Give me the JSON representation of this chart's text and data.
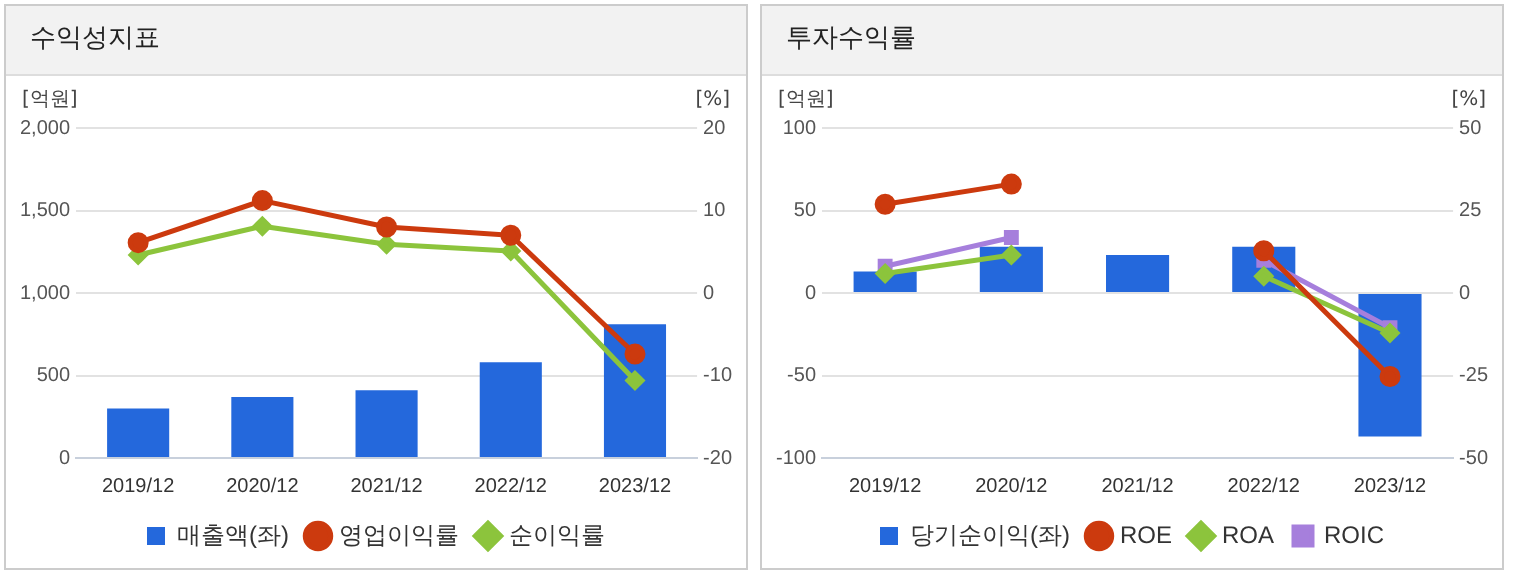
{
  "chart_data": [
    {
      "type": "bar",
      "title": "수익성지표",
      "ylabel": "[억원]",
      "y2label": "[%]",
      "categories": [
        "2019/12",
        "2020/12",
        "2021/12",
        "2022/12",
        "2023/12"
      ],
      "series": [
        {
          "name": "매출액(좌)",
          "color": "#2468dc",
          "values": [
            300,
            370,
            410,
            580,
            810
          ]
        },
        {
          "name": "영업이익률",
          "type": "line",
          "axis": "y2",
          "marker": "circle",
          "color": "#cc3a0e",
          "values": [
            6.1,
            11.2,
            8.0,
            7.0,
            -7.4
          ]
        },
        {
          "name": "순이익률",
          "type": "line",
          "axis": "y2",
          "marker": "diamond",
          "color": "#8cc43c",
          "values": [
            4.6,
            8.1,
            5.9,
            5.1,
            -10.6
          ]
        }
      ],
      "ylim": [
        0,
        2000
      ],
      "yticks": [
        0,
        500,
        {
          "value": 1000,
          "label": "1,000"
        },
        {
          "value": 1500,
          "label": "1,500"
        },
        {
          "value": 2000,
          "label": "2,000"
        }
      ],
      "y2lim": [
        -20,
        20
      ],
      "y2ticks": [
        -20,
        -10,
        0,
        10,
        20
      ],
      "grid": "y",
      "legend": "bottom"
    },
    {
      "type": "bar",
      "title": "투자수익률",
      "ylabel": "[억원]",
      "y2label": "[%]",
      "categories": [
        "2019/12",
        "2020/12",
        "2021/12",
        "2022/12",
        "2023/12"
      ],
      "series": [
        {
          "name": "당기순이익(좌)",
          "color": "#2468dc",
          "values": [
            13,
            28,
            23,
            28,
            -87
          ]
        },
        {
          "name": "ROE",
          "type": "line",
          "axis": "y2",
          "marker": "circle",
          "color": "#cc3a0e",
          "values": [
            26.9,
            33,
            null,
            12.8,
            -25.3
          ]
        },
        {
          "name": "ROA",
          "type": "line",
          "axis": "y2",
          "marker": "diamond",
          "color": "#8cc43c",
          "values": [
            5.9,
            11.5,
            null,
            5.1,
            -12.1
          ]
        },
        {
          "name": "ROIC",
          "type": "line",
          "axis": "y2",
          "marker": "square",
          "color": "#a67fdc",
          "values": [
            8.1,
            16.8,
            null,
            9.9,
            -10.5
          ]
        }
      ],
      "ylim": [
        -100,
        100
      ],
      "yticks": [
        -100,
        -50,
        0,
        50,
        100
      ],
      "y2lim": [
        -50,
        50
      ],
      "y2ticks": [
        -50,
        -25,
        0,
        25,
        50
      ],
      "grid": "y",
      "legend": "bottom"
    }
  ]
}
